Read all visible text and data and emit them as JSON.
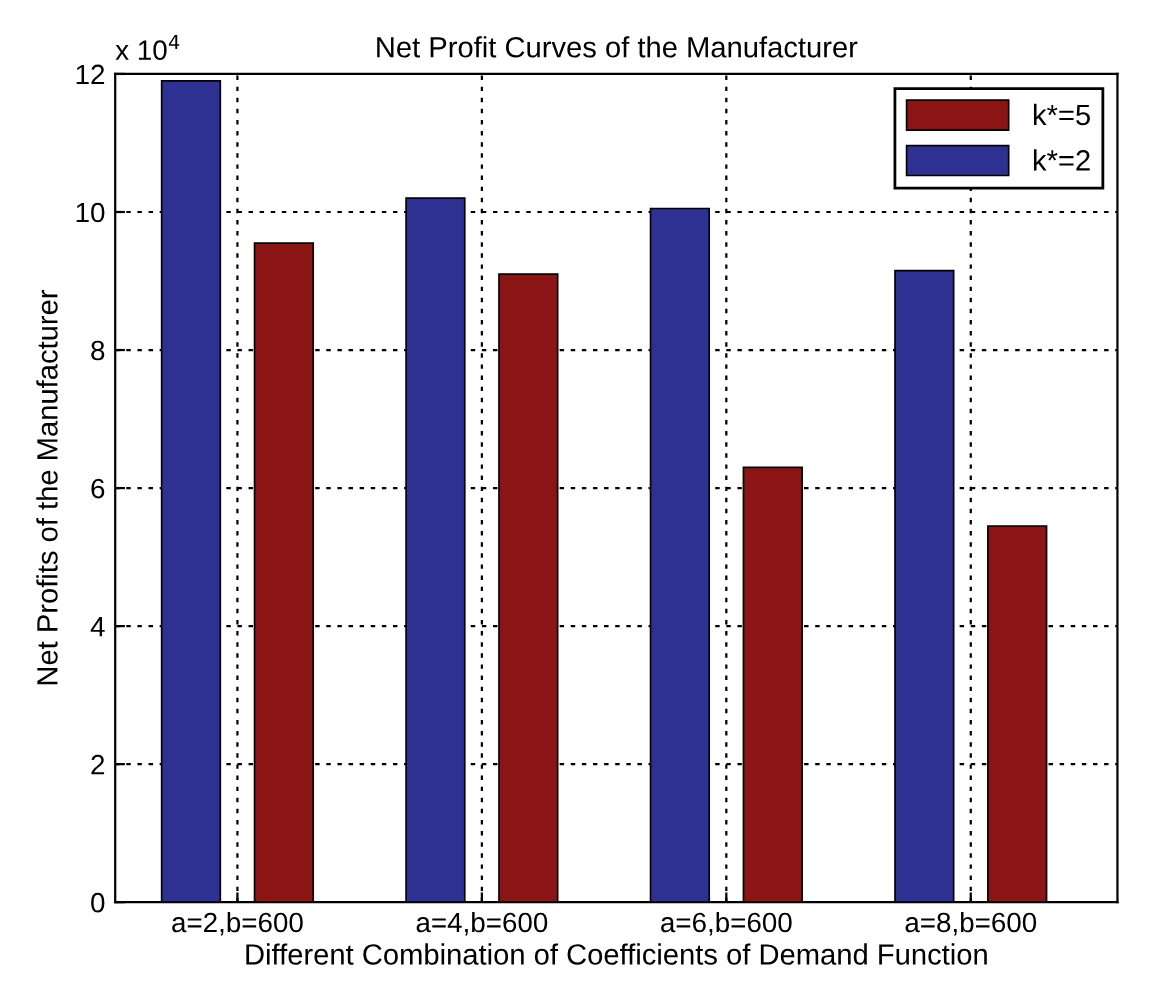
{
  "chart_data": {
    "type": "bar",
    "title": "Net Profit Curves of the Manufacturer",
    "xlabel": "Different Combination of Coefficients of Demand Function",
    "ylabel": "Net Profits of the Manufacturer",
    "annotations": [
      "x 10$^{4}$"
    ],
    "categories": [
      "a=2,b=600",
      "a=4,b=600",
      "a=6,b=600",
      "a=8,b=600"
    ],
    "series": [
      {
        "name": "k*=2",
        "color": "#2e3192",
        "values": [
          11.9,
          10.2,
          10.05,
          9.15
        ]
      },
      {
        "name": "k*=5",
        "color": "#8b1414",
        "values": [
          9.55,
          9.1,
          6.3,
          5.45
        ]
      }
    ],
    "ylim": [
      0,
      12
    ],
    "yticks": [
      0,
      2,
      4,
      6,
      8,
      10,
      12
    ],
    "grid": true,
    "legend": "top right"
  }
}
